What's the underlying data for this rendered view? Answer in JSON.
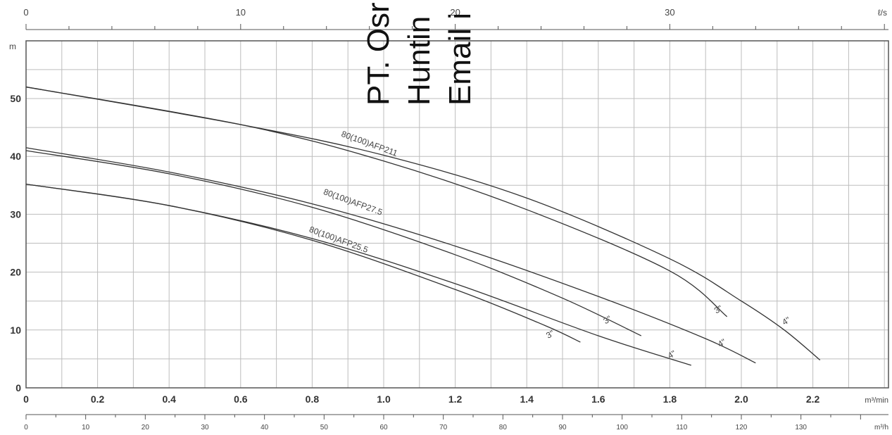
{
  "chart_data": {
    "type": "line",
    "x_primary": {
      "unit": "m³/min",
      "range": [
        0,
        2.4
      ],
      "ticks": [
        "0",
        "0.2",
        "0.4",
        "0.6",
        "0.8",
        "1.0",
        "1.2",
        "1.4",
        "1.6",
        "1.8",
        "2.0",
        "2.2"
      ]
    },
    "x_top": {
      "unit": "ℓ/s",
      "ticks": [
        "0",
        "10",
        "20",
        "30"
      ]
    },
    "x_bottom": {
      "unit": "m³/h",
      "ticks": [
        "0",
        "10",
        "20",
        "30",
        "40",
        "50",
        "60",
        "70",
        "80",
        "90",
        "100",
        "110",
        "120",
        "130"
      ]
    },
    "y": {
      "unit": "m",
      "range": [
        0,
        60
      ],
      "ticks": [
        "0",
        "10",
        "20",
        "30",
        "40",
        "50"
      ]
    },
    "grid": true,
    "series": [
      {
        "name": "80(100)AFP211",
        "size": "3\"",
        "points": [
          [
            0,
            52
          ],
          [
            0.6,
            45.5
          ],
          [
            1.0,
            39.2
          ],
          [
            1.4,
            30.8
          ],
          [
            1.8,
            20.2
          ],
          [
            1.96,
            12.3
          ]
        ]
      },
      {
        "name": "80(100)AFP211",
        "size": "4\"",
        "points": [
          [
            0,
            52
          ],
          [
            0.6,
            45.5
          ],
          [
            1.0,
            40.2
          ],
          [
            1.4,
            32.8
          ],
          [
            1.8,
            22.3
          ],
          [
            2.0,
            15.0
          ],
          [
            2.12,
            10.0
          ],
          [
            2.22,
            4.8
          ]
        ]
      },
      {
        "name": "80(100)AFP27.5",
        "size": "3\"",
        "points": [
          [
            0,
            41
          ],
          [
            0.4,
            37.0
          ],
          [
            0.8,
            31.2
          ],
          [
            1.2,
            23.0
          ],
          [
            1.5,
            15.5
          ],
          [
            1.72,
            9.0
          ]
        ]
      },
      {
        "name": "80(100)AFP27.5",
        "size": "4\"",
        "points": [
          [
            0,
            41.5
          ],
          [
            0.4,
            37.3
          ],
          [
            0.8,
            31.8
          ],
          [
            1.2,
            24.5
          ],
          [
            1.6,
            15.8
          ],
          [
            1.9,
            8.5
          ],
          [
            2.04,
            4.3
          ]
        ]
      },
      {
        "name": "80(100)AFP25.5",
        "size": "3\"",
        "points": [
          [
            0,
            35.2
          ],
          [
            0.4,
            31.5
          ],
          [
            0.8,
            25.5
          ],
          [
            1.2,
            17.0
          ],
          [
            1.45,
            10.8
          ],
          [
            1.55,
            7.9
          ]
        ]
      },
      {
        "name": "80(100)AFP25.5",
        "size": "4\"",
        "points": [
          [
            0,
            35.2
          ],
          [
            0.4,
            31.5
          ],
          [
            0.8,
            25.8
          ],
          [
            1.2,
            18.0
          ],
          [
            1.6,
            9.0
          ],
          [
            1.86,
            3.9
          ]
        ]
      }
    ],
    "curve_labels": [
      {
        "text": "80(100)AFP211",
        "at": [
          0.88,
          43.5
        ]
      },
      {
        "text": "80(100)AFP27.5",
        "at": [
          0.83,
          33.5
        ]
      },
      {
        "text": "80(100)AFP25.5",
        "at": [
          0.79,
          27.0
        ]
      },
      {
        "text": "3\"",
        "at": [
          1.93,
          12.8
        ]
      },
      {
        "text": "4\"",
        "at": [
          2.12,
          10.8
        ]
      },
      {
        "text": "3\"",
        "at": [
          1.62,
          11.0
        ]
      },
      {
        "text": "4\"",
        "at": [
          1.94,
          7.0
        ]
      },
      {
        "text": "3\"",
        "at": [
          1.46,
          8.5
        ]
      },
      {
        "text": "4\"",
        "at": [
          1.8,
          5.0
        ]
      }
    ]
  },
  "watermark": [
    "PT. Osr",
    "Huntin",
    "Email i"
  ]
}
